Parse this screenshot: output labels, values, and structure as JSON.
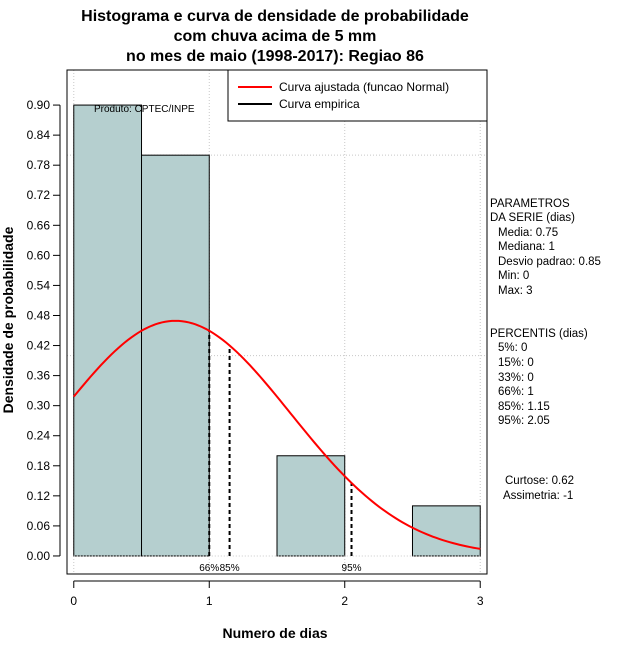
{
  "chart_data": {
    "type": "bar",
    "title_lines": [
      "Histograma e curva de densidade de probabilidade",
      "com chuva acima de 5 mm",
      "no mes de maio (1998-2017): Regiao 86"
    ],
    "xlabel": "Numero de dias",
    "ylabel": "Densidade de probabilidade",
    "xlim": [
      -0.05,
      3.05
    ],
    "ylim": [
      -0.036,
      0.97
    ],
    "x_ticks": [
      0,
      1,
      2,
      3
    ],
    "x_tick_labels": [
      "0",
      "1",
      "2",
      "3"
    ],
    "y_ticks": [
      0.0,
      0.06,
      0.12,
      0.18,
      0.24,
      0.3,
      0.36,
      0.42,
      0.48,
      0.54,
      0.6,
      0.66,
      0.72,
      0.78,
      0.84,
      0.9
    ],
    "y_tick_labels": [
      "0.00",
      "0.06",
      "0.12",
      "0.18",
      "0.24",
      "0.30",
      "0.36",
      "0.42",
      "0.48",
      "0.54",
      "0.60",
      "0.66",
      "0.72",
      "0.78",
      "0.84",
      "0.90"
    ],
    "grid": true,
    "grid_x": [
      0,
      1,
      2,
      3
    ],
    "grid_y": [
      0.4,
      0.8
    ],
    "bars": [
      {
        "x0": 0.0,
        "x1": 0.5,
        "value": 0.9
      },
      {
        "x0": 0.5,
        "x1": 1.0,
        "value": 0.8
      },
      {
        "x0": 1.0,
        "x1": 1.5,
        "value": 0.0
      },
      {
        "x0": 1.5,
        "x1": 2.0,
        "value": 0.2
      },
      {
        "x0": 2.0,
        "x1": 2.5,
        "value": 0.0
      },
      {
        "x0": 2.5,
        "x1": 3.0,
        "value": 0.1
      }
    ],
    "bar_color": "#b5cfcf",
    "curve": {
      "name": "Curva ajustada (funcao Normal)",
      "color": "#ff0000",
      "mean": 0.75,
      "sd": 0.85,
      "x_from": 0,
      "x_to": 3
    },
    "empirical": {
      "name": "Curva empirica",
      "color": "#000000"
    },
    "percentile_lines": [
      {
        "x": 1.0,
        "label": "66%"
      },
      {
        "x": 1.15,
        "label": "85%"
      },
      {
        "x": 2.05,
        "label": "95%"
      }
    ],
    "legend_position": "top-right",
    "legend": [
      "Curva ajustada (funcao Normal)",
      "Curva empirica"
    ],
    "annotation": "Produto: CPTEC/INPE"
  },
  "side_panel": {
    "params_title_1": "PARAMETROS",
    "params_title_2": "DA SERIE (dias)",
    "media": "Media: 0.75",
    "mediana": "Mediana: 1",
    "desvio": "Desvio padrao: 0.85",
    "min": "Min: 0",
    "max": "Max: 3",
    "perc_title": "PERCENTIS (dias)",
    "p5": "5%: 0",
    "p15": "15%: 0",
    "p33": "33%: 0",
    "p66": "66%: 1",
    "p85": "85%: 1.15",
    "p95": "95%: 2.05",
    "curtose": "Curtose: 0.62",
    "assimetria": "Assimetria: -1"
  }
}
